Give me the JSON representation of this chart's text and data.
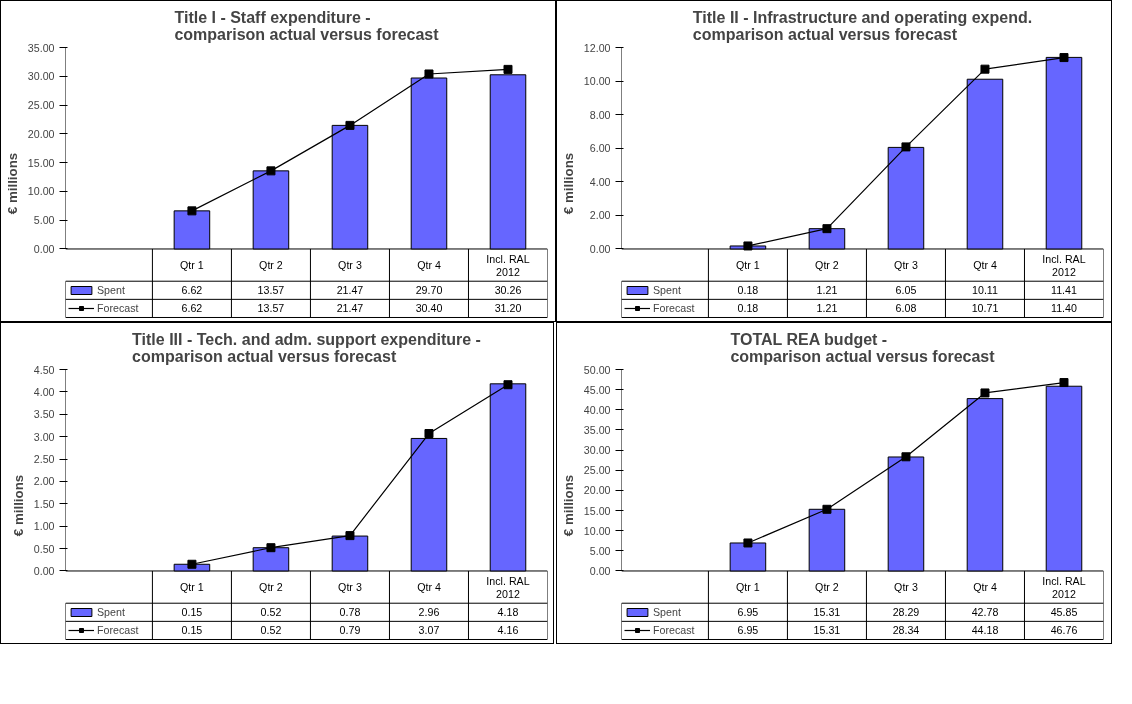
{
  "chart_data": [
    {
      "type": "bar",
      "title": "Title I - Staff expenditure -\ncomparison actual versus forecast",
      "ylabel": "€ millions",
      "categories": [
        "Qtr 1",
        "Qtr 2",
        "Qtr 3",
        "Qtr 4",
        "Incl. RAL 2012"
      ],
      "series": [
        {
          "name": "Spent",
          "type": "bar",
          "color": "#6666ff",
          "values": [
            6.62,
            13.57,
            21.47,
            29.7,
            30.26
          ],
          "value_labels": [
            "6.62",
            "13.57",
            "21.47",
            "29.70",
            "30.26"
          ]
        },
        {
          "name": "Forecast",
          "type": "line",
          "color": "#000000",
          "marker": "square",
          "values": [
            6.62,
            13.57,
            21.47,
            30.4,
            31.2
          ],
          "value_labels": [
            "6.62",
            "13.57",
            "21.47",
            "30.40",
            "31.20"
          ]
        }
      ],
      "ylim": [
        0,
        35
      ],
      "yticks": [
        {
          "value": 0,
          "label": "0.00"
        },
        {
          "value": 5,
          "label": "5.00"
        },
        {
          "value": 10,
          "label": "10.00"
        },
        {
          "value": 15,
          "label": "15.00"
        },
        {
          "value": 20,
          "label": "20.00"
        },
        {
          "value": 25,
          "label": "25.00"
        },
        {
          "value": 30,
          "label": "30.00"
        },
        {
          "value": 35,
          "label": "35.00"
        }
      ],
      "legend": "bottom",
      "tick_labels": "y"
    },
    {
      "type": "bar",
      "title": "Title II - Infrastructure and operating expend.\ncomparison actual versus forecast",
      "ylabel": "€ millions",
      "categories": [
        "Qtr 1",
        "Qtr 2",
        "Qtr 3",
        "Qtr 4",
        "Incl. RAL 2012"
      ],
      "series": [
        {
          "name": "Spent",
          "type": "bar",
          "color": "#6666ff",
          "values": [
            0.18,
            1.21,
            6.05,
            10.11,
            11.41
          ],
          "value_labels": [
            "0.18",
            "1.21",
            "6.05",
            "10.11",
            "11.41"
          ]
        },
        {
          "name": "Forecast",
          "type": "line",
          "color": "#000000",
          "marker": "square",
          "values": [
            0.18,
            1.21,
            6.08,
            10.71,
            11.4
          ],
          "value_labels": [
            "0.18",
            "1.21",
            "6.08",
            "10.71",
            "11.40"
          ]
        }
      ],
      "ylim": [
        0,
        12
      ],
      "yticks": [
        {
          "value": 0,
          "label": "0.00"
        },
        {
          "value": 2,
          "label": "2.00"
        },
        {
          "value": 4,
          "label": "4.00"
        },
        {
          "value": 6,
          "label": "6.00"
        },
        {
          "value": 8,
          "label": "8.00"
        },
        {
          "value": 10,
          "label": "10.00"
        },
        {
          "value": 12,
          "label": "12.00"
        }
      ],
      "legend": "bottom",
      "tick_labels": "y"
    },
    {
      "type": "bar",
      "title": "Title III - Tech. and adm. support expenditure -\ncomparison actual versus forecast",
      "ylabel": "€ millions",
      "categories": [
        "Qtr 1",
        "Qtr 2",
        "Qtr 3",
        "Qtr 4",
        "Incl. RAL 2012"
      ],
      "series": [
        {
          "name": "Spent",
          "type": "bar",
          "color": "#6666ff",
          "values": [
            0.15,
            0.52,
            0.78,
            2.96,
            4.18
          ],
          "value_labels": [
            "0.15",
            "0.52",
            "0.78",
            "2.96",
            "4.18"
          ]
        },
        {
          "name": "Forecast",
          "type": "line",
          "color": "#000000",
          "marker": "square",
          "values": [
            0.15,
            0.52,
            0.79,
            3.07,
            4.16
          ],
          "value_labels": [
            "0.15",
            "0.52",
            "0.79",
            "3.07",
            "4.16"
          ]
        }
      ],
      "ylim": [
        0,
        4.5
      ],
      "yticks": [
        {
          "value": 0,
          "label": "0.00"
        },
        {
          "value": 0.5,
          "label": "0.50"
        },
        {
          "value": 1,
          "label": "1.00"
        },
        {
          "value": 1.5,
          "label": "1.50"
        },
        {
          "value": 2,
          "label": "2.00"
        },
        {
          "value": 2.5,
          "label": "2.50"
        },
        {
          "value": 3,
          "label": "3.00"
        },
        {
          "value": 3.5,
          "label": "3.50"
        },
        {
          "value": 4,
          "label": "4.00"
        },
        {
          "value": 4.5,
          "label": "4.50"
        }
      ],
      "legend": "bottom",
      "tick_labels": "y"
    },
    {
      "type": "bar",
      "title": "TOTAL REA budget -\ncomparison actual versus forecast",
      "ylabel": "€ millions",
      "categories": [
        "Qtr 1",
        "Qtr 2",
        "Qtr 3",
        "Qtr 4",
        "Incl. RAL 2012"
      ],
      "series": [
        {
          "name": "Spent",
          "type": "bar",
          "color": "#6666ff",
          "values": [
            6.95,
            15.31,
            28.29,
            42.78,
            45.85
          ],
          "value_labels": [
            "6.95",
            "15.31",
            "28.29",
            "42.78",
            "45.85"
          ]
        },
        {
          "name": "Forecast",
          "type": "line",
          "color": "#000000",
          "marker": "square",
          "values": [
            6.95,
            15.31,
            28.34,
            44.18,
            46.76
          ],
          "value_labels": [
            "6.95",
            "15.31",
            "28.34",
            "44.18",
            "46.76"
          ]
        }
      ],
      "ylim": [
        0,
        50
      ],
      "yticks": [
        {
          "value": 0,
          "label": "0.00"
        },
        {
          "value": 5,
          "label": "5.00"
        },
        {
          "value": 10,
          "label": "10.00"
        },
        {
          "value": 15,
          "label": "15.00"
        },
        {
          "value": 20,
          "label": "20.00"
        },
        {
          "value": 25,
          "label": "25.00"
        },
        {
          "value": 30,
          "label": "30.00"
        },
        {
          "value": 35,
          "label": "35.00"
        },
        {
          "value": 40,
          "label": "40.00"
        },
        {
          "value": 45,
          "label": "45.00"
        },
        {
          "value": 50,
          "label": "50.00"
        }
      ],
      "legend": "bottom",
      "tick_labels": "y"
    }
  ]
}
